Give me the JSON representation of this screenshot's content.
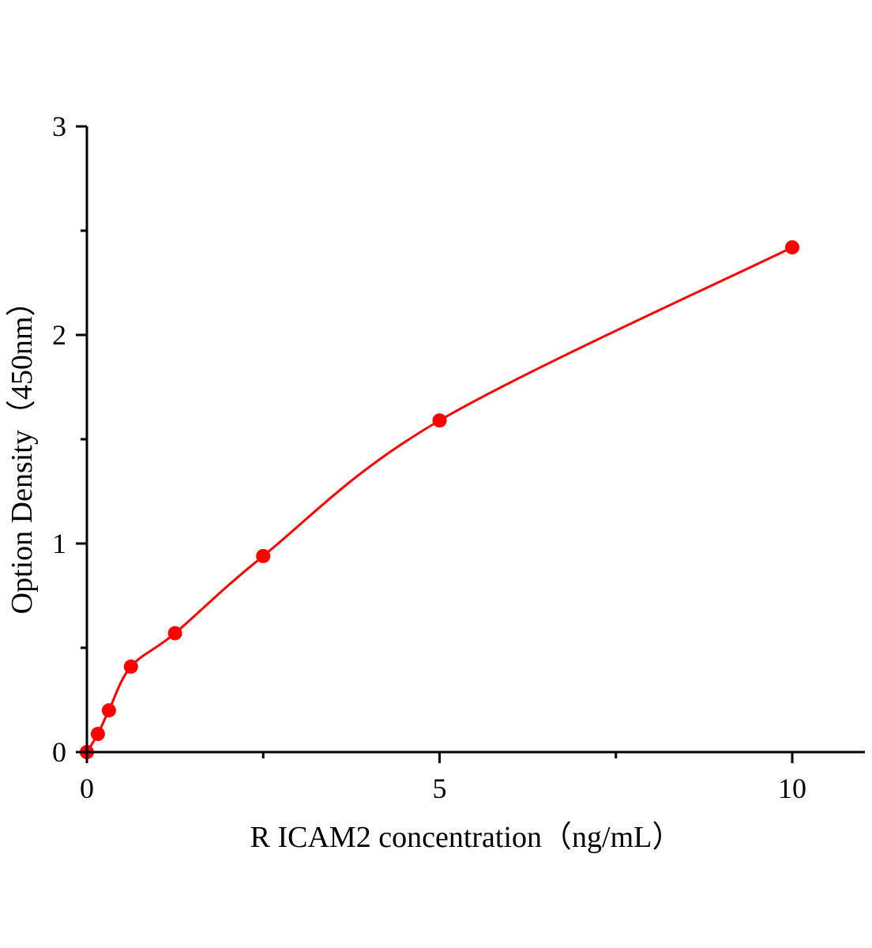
{
  "chart_data": {
    "type": "scatter",
    "title": "",
    "xlabel": "R ICAM2  concentration（ng/mL）",
    "ylabel": "Option Density（450nm）",
    "xlim": [
      0,
      11.03
    ],
    "ylim": [
      0,
      3
    ],
    "xticks": [
      0,
      5,
      10
    ],
    "xtick_labels": [
      "0",
      "5",
      "10"
    ],
    "yticks": [
      0,
      1,
      2,
      3
    ],
    "ytick_labels": [
      "0",
      "1",
      "2",
      "3"
    ],
    "x_minor_ticks": [
      2.5,
      7.5
    ],
    "y_minor_ticks": [
      0.5,
      1.5,
      2.5
    ],
    "grid": false,
    "legend": "none",
    "series": [
      {
        "x": [
          0,
          0.156,
          0.3125,
          0.625,
          1.25,
          2.5,
          5,
          10
        ],
        "y": [
          0,
          0.087,
          0.2,
          0.41,
          0.57,
          0.94,
          1.59,
          2.42
        ],
        "color": "#ff0000",
        "marker": "circle",
        "fit_curve": true
      }
    ]
  }
}
